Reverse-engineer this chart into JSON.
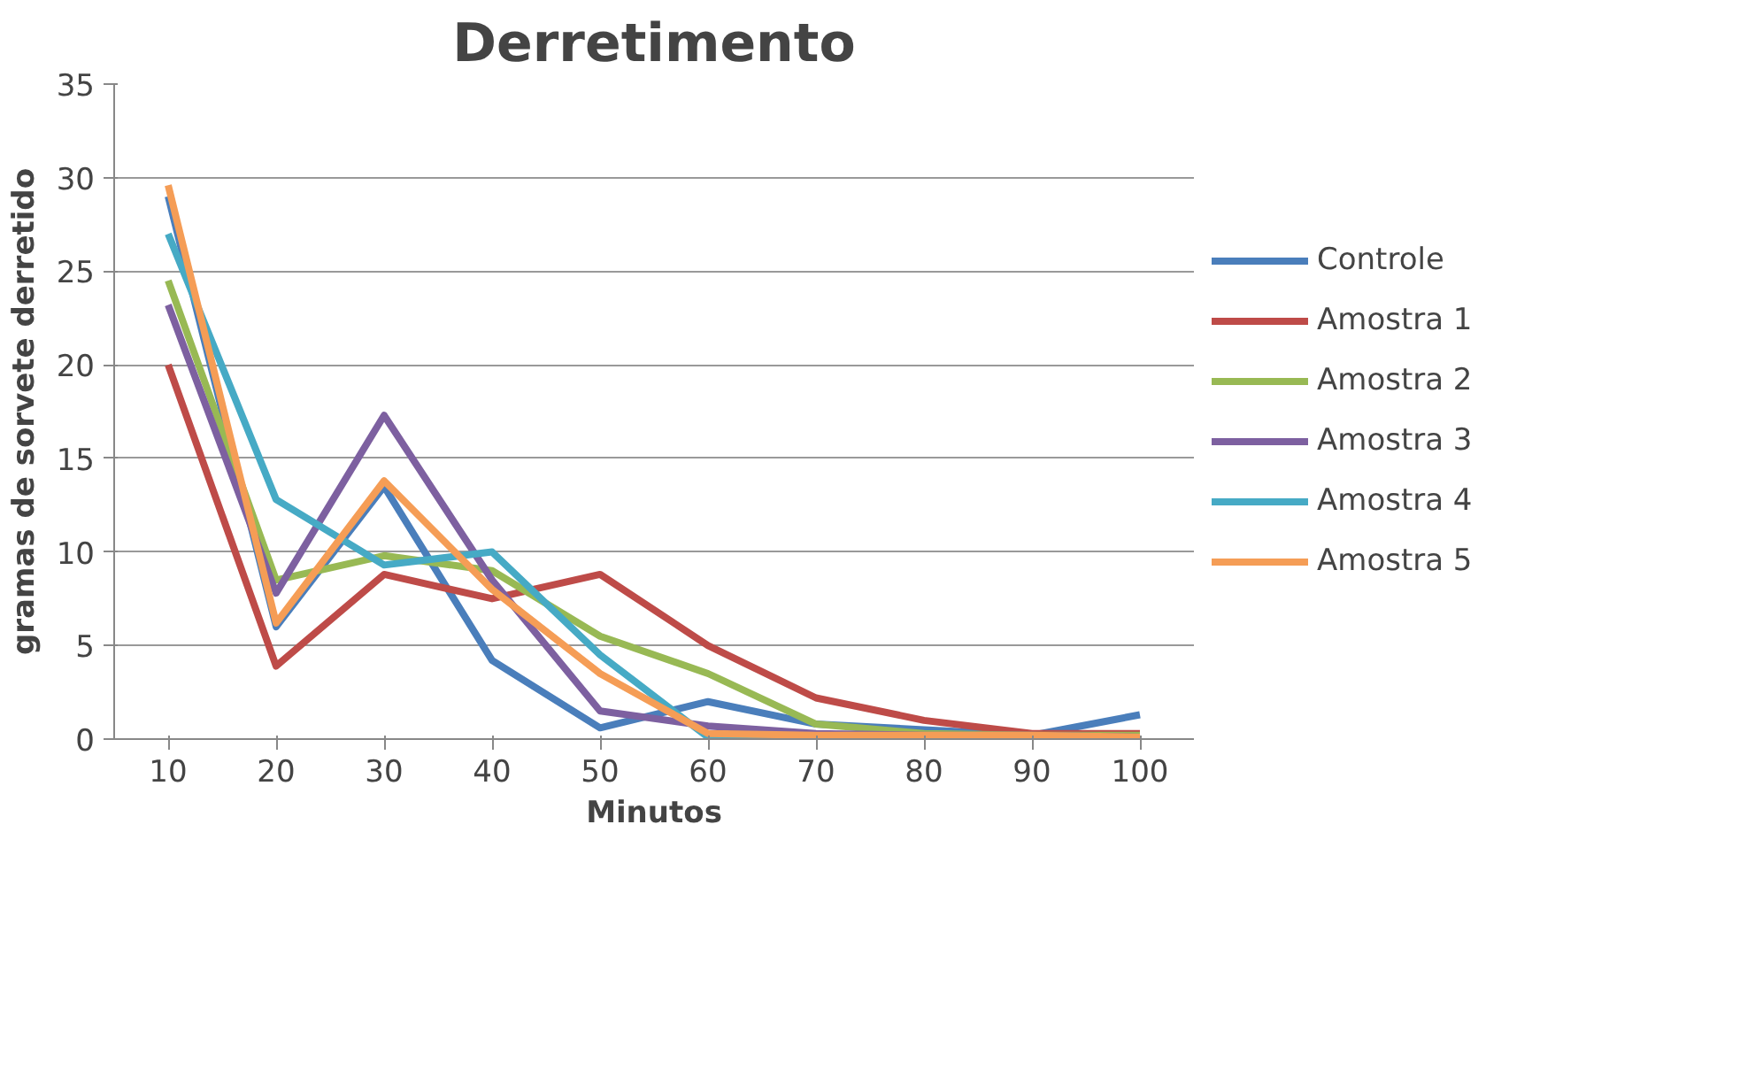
{
  "chart_data": {
    "type": "line",
    "title": "Derretimento",
    "xlabel": "Minutos",
    "ylabel": "gramas de sorvete derretido",
    "categories": [
      "10",
      "20",
      "30",
      "40",
      "50",
      "60",
      "70",
      "80",
      "90",
      "100"
    ],
    "series": [
      {
        "name": "Controle",
        "color": "#4a7ebb",
        "values": [
          29,
          6,
          13.5,
          4.2,
          0.6,
          2,
          0.8,
          0.5,
          0.2,
          1.3
        ]
      },
      {
        "name": "Amostra 1",
        "color": "#be4b48",
        "values": [
          20,
          3.9,
          8.8,
          7.5,
          8.8,
          5,
          2.2,
          1,
          0.3,
          0.3
        ]
      },
      {
        "name": "Amostra 2",
        "color": "#98b954",
        "values": [
          24.5,
          8.5,
          9.8,
          9,
          5.5,
          3.5,
          0.8,
          0.3,
          0.2,
          0.2
        ]
      },
      {
        "name": "Amostra 3",
        "color": "#7d60a0",
        "values": [
          23.2,
          7.8,
          17.3,
          8.5,
          1.5,
          0.7,
          0.3,
          0.2,
          0.2,
          0.1
        ]
      },
      {
        "name": "Amostra 4",
        "color": "#46aac5",
        "values": [
          27,
          12.8,
          9.3,
          10,
          4.5,
          0.1,
          0.1,
          0.1,
          null,
          null
        ]
      },
      {
        "name": "Amostra 5",
        "color": "#f59d56",
        "values": [
          29.6,
          6.2,
          13.8,
          8,
          3.5,
          0.3,
          0.2,
          0.2,
          0.2,
          0.1
        ]
      }
    ],
    "ylim": [
      0,
      35
    ],
    "yticks": [
      0,
      5,
      10,
      15,
      20,
      25,
      30,
      35
    ],
    "grid": "y",
    "legend": "right",
    "marker": "none",
    "line_style": "solid"
  }
}
